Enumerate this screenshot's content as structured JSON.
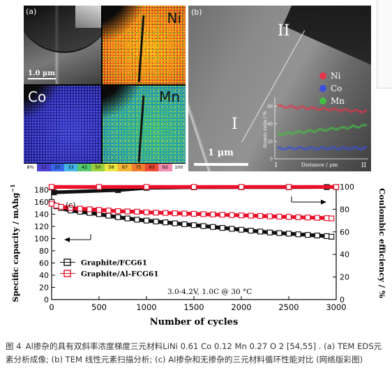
{
  "panel_a": {
    "letter": "(a)",
    "scale_bar": "1.0 μm",
    "maps": {
      "ni": "Ni",
      "co": "Co",
      "mn": "Mn"
    },
    "legend": [
      {
        "label": "8%",
        "color": "#ffffff"
      },
      {
        "label": "17",
        "color": "#4b3fd0"
      },
      {
        "label": "25",
        "color": "#3567e6"
      },
      {
        "label": "33",
        "color": "#45b6e8"
      },
      {
        "label": "42",
        "color": "#55c76e"
      },
      {
        "label": "50",
        "color": "#9ad040"
      },
      {
        "label": "58",
        "color": "#ece640"
      },
      {
        "label": "67",
        "color": "#f3b437"
      },
      {
        "label": "75",
        "color": "#ef7d2f"
      },
      {
        "label": "83",
        "color": "#ea4a34"
      },
      {
        "label": "92",
        "color": "#f08bb0"
      },
      {
        "label": "100",
        "color": "#ffffff"
      }
    ]
  },
  "panel_b": {
    "letter": "(b)",
    "marker_start": "I",
    "marker_end": "II",
    "scale_bar": "1 μm",
    "legend": [
      {
        "label": "Ni",
        "color": "#e8344a"
      },
      {
        "label": "Co",
        "color": "#3a4ee0"
      },
      {
        "label": "Mn",
        "color": "#43c043"
      }
    ],
    "inset": {
      "ylabel": "Atomic ratio / %",
      "yticks": [
        "0",
        "20",
        "40",
        "60"
      ],
      "xlabel": "Distance / μm",
      "x_start": "I",
      "x_end": "II"
    }
  },
  "chart_data": {
    "type": "scatter",
    "panel_label": "(c)",
    "xlabel": "Number of cycles",
    "ylabel": "Specific capacity / mAhg",
    "ylabel_sup": "−1",
    "y2label": "Coulombic efficiency / %",
    "xlim": [
      0,
      3000
    ],
    "ylim": [
      0,
      185
    ],
    "y2lim": [
      0,
      100
    ],
    "xticks": [
      0,
      500,
      1000,
      1500,
      2000,
      2500,
      3000
    ],
    "yticks": [
      0,
      20,
      40,
      60,
      80,
      100,
      120,
      140,
      160,
      180
    ],
    "y2ticks": [
      0,
      20,
      40,
      60,
      80,
      100
    ],
    "annotation": "3.0-4.2V, 1.0C @ 30 °C",
    "legend_position": "center-left",
    "series": [
      {
        "name": "Graphite/FCG61",
        "axis": "capacity",
        "color": "#111111",
        "marker": "open-square",
        "x": [
          0,
          50,
          100,
          200,
          300,
          400,
          500,
          600,
          700,
          800,
          900,
          1000,
          1100,
          1200,
          1300,
          1400,
          1500,
          1600,
          1700,
          1800,
          1900,
          2000,
          2100,
          2200,
          2300,
          2400,
          2500,
          2600,
          2700,
          2800,
          2900,
          2950
        ],
        "y": [
          160,
          153,
          150,
          146,
          144,
          142,
          140,
          137.5,
          135,
          133,
          131,
          129.5,
          128,
          126.5,
          125,
          123.5,
          122,
          120.5,
          119,
          117.5,
          116,
          114.5,
          113,
          111.5,
          110,
          109,
          108,
          107,
          106,
          105,
          104,
          103
        ]
      },
      {
        "name": "Graphite/Al-FCG61",
        "axis": "capacity",
        "color": "#e8102a",
        "marker": "open-square",
        "x": [
          0,
          50,
          100,
          200,
          300,
          400,
          500,
          600,
          700,
          800,
          900,
          1000,
          1100,
          1200,
          1300,
          1400,
          1500,
          1600,
          1700,
          1800,
          1900,
          2000,
          2100,
          2200,
          2300,
          2400,
          2500,
          2600,
          2700,
          2800,
          2900,
          2950
        ],
        "y": [
          157,
          154,
          152,
          150,
          149,
          148,
          147,
          146,
          145,
          144.5,
          144,
          143,
          142.5,
          142,
          141.5,
          141,
          140.5,
          140,
          139.5,
          139,
          138.5,
          138,
          137.5,
          137,
          136.5,
          136,
          135.5,
          135,
          134.5,
          134,
          133.5,
          133
        ]
      },
      {
        "name": "Coulombic efficiency (Graphite/FCG61)",
        "axis": "efficiency",
        "color": "#111111",
        "marker": "filled-square",
        "x": [
          0,
          25,
          700,
          1000,
          1500,
          2000,
          2500,
          2900,
          3000
        ],
        "y": [
          99.5,
          95,
          97,
          99,
          99.5,
          99.6,
          99.6,
          99.7,
          99.7
        ]
      },
      {
        "name": "Coulombic efficiency (Graphite/Al-FCG61)",
        "axis": "efficiency",
        "color": "#e8102a",
        "marker": "open-square",
        "x": [
          0,
          500,
          1000,
          1500,
          2000,
          2500,
          3000
        ],
        "y": [
          99.8,
          99.8,
          99.8,
          99.8,
          99.8,
          99.8,
          99.8
        ]
      }
    ]
  },
  "caption": {
    "figure_number": "图 4",
    "text": "Al掺杂的具有双斜率浓度梯度三元材料LiNi 0.61 Co 0.12 Mn 0.27 O 2 [54,55] . (a) TEM EDS元素分析成像; (b) TEM 线性元素扫描分析; (c) Al掺杂和无掺杂的三元材料循环性能对比 (网络版彩图)"
  }
}
